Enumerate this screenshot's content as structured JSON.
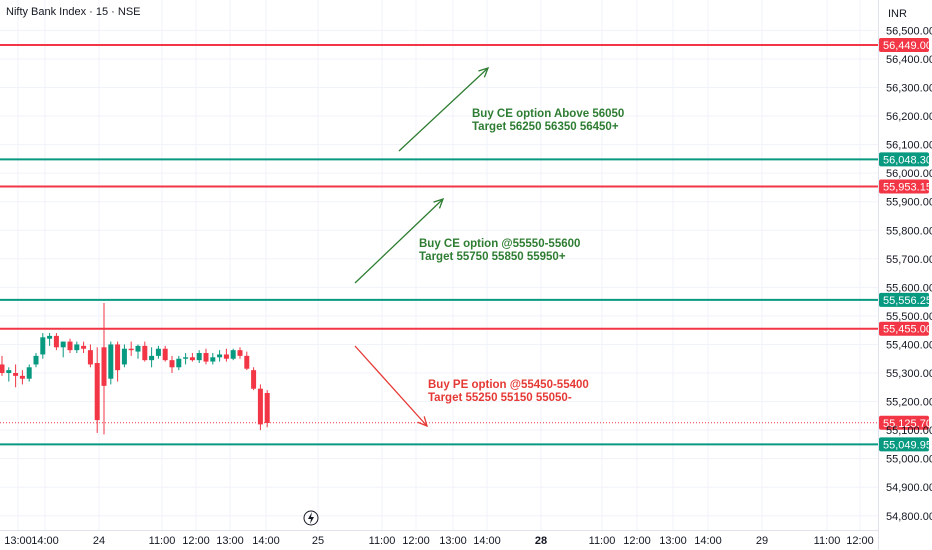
{
  "chart_data": {
    "type": "candlestick",
    "title": "Nifty Bank Index · 15 · NSE",
    "currency": "INR",
    "ylim": [
      54750,
      56550
    ],
    "grid": true,
    "y_ticks": [
      "56,500.00",
      "56,400.00",
      "56,300.00",
      "56,200.00",
      "56,100.00",
      "56,000.00",
      "55,900.00",
      "55,800.00",
      "55,700.00",
      "55,600.00",
      "55,500.00",
      "55,400.00",
      "55,300.00",
      "55,200.00",
      "55,100.00",
      "55,000.00",
      "54,900.00",
      "54,800.00"
    ],
    "y_tick_values": [
      56500,
      56400,
      56300,
      56200,
      56100,
      56000,
      55900,
      55800,
      55700,
      55600,
      55500,
      55400,
      55300,
      55200,
      55100,
      55000,
      54900,
      54800
    ],
    "x_ticks": [
      {
        "label": "13:00",
        "bold": false
      },
      {
        "label": "14:00",
        "bold": false
      },
      {
        "label": "24",
        "bold": false
      },
      {
        "label": "11:00",
        "bold": false
      },
      {
        "label": "12:00",
        "bold": false
      },
      {
        "label": "13:00",
        "bold": false
      },
      {
        "label": "14:00",
        "bold": false
      },
      {
        "label": "25",
        "bold": false
      },
      {
        "label": "11:00",
        "bold": false
      },
      {
        "label": "12:00",
        "bold": false
      },
      {
        "label": "13:00",
        "bold": false
      },
      {
        "label": "14:00",
        "bold": false
      },
      {
        "label": "28",
        "bold": true
      },
      {
        "label": "11:00",
        "bold": false
      },
      {
        "label": "12:00",
        "bold": false
      },
      {
        "label": "13:00",
        "bold": false
      },
      {
        "label": "14:00",
        "bold": false
      },
      {
        "label": "29",
        "bold": false
      },
      {
        "label": "11:00",
        "bold": false
      },
      {
        "label": "12:00",
        "bold": false
      }
    ],
    "levels": [
      {
        "value": 56449.0,
        "label": "56,449.00",
        "color": "#f23645"
      },
      {
        "value": 56048.3,
        "label": "56,048.30",
        "color": "#089981"
      },
      {
        "value": 55953.15,
        "label": "55,953.15",
        "color": "#f23645"
      },
      {
        "value": 55556.25,
        "label": "55,556.25",
        "color": "#089981"
      },
      {
        "value": 55455.0,
        "label": "55,455.00",
        "color": "#f23645"
      },
      {
        "value": 55049.95,
        "label": "55,049.95",
        "color": "#089981"
      }
    ],
    "last_price": {
      "value": 55125.7,
      "label": "55,125.70",
      "color": "#f23645"
    },
    "candles": [
      {
        "o": 55330,
        "h": 55360,
        "l": 55290,
        "c": 55300
      },
      {
        "o": 55300,
        "h": 55320,
        "l": 55270,
        "c": 55310
      },
      {
        "o": 55300,
        "h": 55330,
        "l": 55250,
        "c": 55290
      },
      {
        "o": 55290,
        "h": 55310,
        "l": 55260,
        "c": 55280
      },
      {
        "o": 55280,
        "h": 55330,
        "l": 55270,
        "c": 55320
      },
      {
        "o": 55330,
        "h": 55370,
        "l": 55320,
        "c": 55360
      },
      {
        "o": 55365,
        "h": 55440,
        "l": 55350,
        "c": 55425
      },
      {
        "o": 55420,
        "h": 55440,
        "l": 55395,
        "c": 55430
      },
      {
        "o": 55430,
        "h": 55440,
        "l": 55380,
        "c": 55390
      },
      {
        "o": 55390,
        "h": 55410,
        "l": 55355,
        "c": 55410
      },
      {
        "o": 55410,
        "h": 55420,
        "l": 55370,
        "c": 55380
      },
      {
        "o": 55380,
        "h": 55410,
        "l": 55370,
        "c": 55400
      },
      {
        "o": 55395,
        "h": 55410,
        "l": 55370,
        "c": 55385
      },
      {
        "o": 55380,
        "h": 55400,
        "l": 55320,
        "c": 55330
      },
      {
        "o": 55335,
        "h": 55390,
        "l": 55090,
        "c": 55135
      },
      {
        "o": 55390,
        "h": 55545,
        "l": 55085,
        "c": 55255
      },
      {
        "o": 55280,
        "h": 55410,
        "l": 55260,
        "c": 55400
      },
      {
        "o": 55400,
        "h": 55410,
        "l": 55270,
        "c": 55310
      },
      {
        "o": 55330,
        "h": 55400,
        "l": 55320,
        "c": 55385
      },
      {
        "o": 55385,
        "h": 55410,
        "l": 55360,
        "c": 55380
      },
      {
        "o": 55375,
        "h": 55400,
        "l": 55350,
        "c": 55395
      },
      {
        "o": 55395,
        "h": 55410,
        "l": 55340,
        "c": 55345
      },
      {
        "o": 55345,
        "h": 55390,
        "l": 55320,
        "c": 55360
      },
      {
        "o": 55360,
        "h": 55395,
        "l": 55350,
        "c": 55385
      },
      {
        "o": 55385,
        "h": 55395,
        "l": 55340,
        "c": 55345
      },
      {
        "o": 55345,
        "h": 55360,
        "l": 55300,
        "c": 55320
      },
      {
        "o": 55320,
        "h": 55360,
        "l": 55310,
        "c": 55350
      },
      {
        "o": 55350,
        "h": 55370,
        "l": 55330,
        "c": 55355
      },
      {
        "o": 55355,
        "h": 55370,
        "l": 55340,
        "c": 55345
      },
      {
        "o": 55345,
        "h": 55380,
        "l": 55335,
        "c": 55370
      },
      {
        "o": 55370,
        "h": 55385,
        "l": 55330,
        "c": 55340
      },
      {
        "o": 55340,
        "h": 55370,
        "l": 55330,
        "c": 55355
      },
      {
        "o": 55355,
        "h": 55380,
        "l": 55340,
        "c": 55365
      },
      {
        "o": 55365,
        "h": 55385,
        "l": 55340,
        "c": 55350
      },
      {
        "o": 55350,
        "h": 55385,
        "l": 55345,
        "c": 55380
      },
      {
        "o": 55380,
        "h": 55390,
        "l": 55350,
        "c": 55360
      },
      {
        "o": 55360,
        "h": 55375,
        "l": 55310,
        "c": 55315
      },
      {
        "o": 55310,
        "h": 55320,
        "l": 55240,
        "c": 55245
      },
      {
        "o": 55245,
        "h": 55260,
        "l": 55100,
        "c": 55120
      },
      {
        "o": 55230,
        "h": 55240,
        "l": 55110,
        "c": 55125
      }
    ],
    "annotations": [
      {
        "lines": [
          "Buy CE option Above 56050",
          "Target 56250 56350 56450+"
        ],
        "color": "#2e7d32"
      },
      {
        "lines": [
          "Buy CE option @55550-55600",
          "Target 55750 55850 55950+"
        ],
        "color": "#2e7d32"
      },
      {
        "lines": [
          "Buy PE option @55450-55400",
          "Target 55250 55150 55050-"
        ],
        "color": "#e53935"
      }
    ],
    "colors": {
      "up": "#089981",
      "down": "#f23645",
      "grid": "#f0f3fa",
      "axis_text": "#131722"
    }
  }
}
